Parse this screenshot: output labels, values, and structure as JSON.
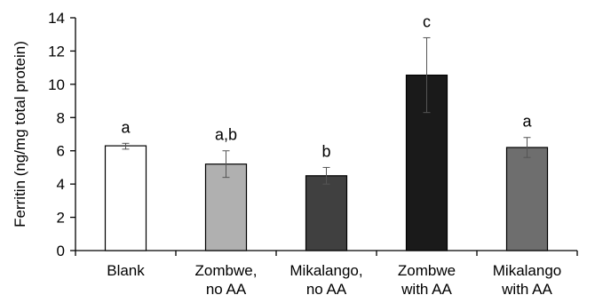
{
  "chart_data": {
    "type": "bar",
    "title": "",
    "xlabel": "",
    "ylabel": "Ferritin (ng/mg total protein)",
    "ylim": [
      0,
      14
    ],
    "yticks": [
      0,
      2,
      4,
      6,
      8,
      10,
      12,
      14
    ],
    "grid": false,
    "categories": [
      [
        "Blank"
      ],
      [
        "Zombwe,",
        "no AA"
      ],
      [
        "Mikalango,",
        "no AA"
      ],
      [
        "Zombwe",
        "with AA"
      ],
      [
        "Mikalango",
        "with AA"
      ]
    ],
    "values": [
      6.3,
      5.2,
      4.5,
      10.55,
      6.2
    ],
    "error_low": [
      6.1,
      4.4,
      4.0,
      8.3,
      5.6
    ],
    "error_high": [
      6.45,
      6.0,
      5.0,
      12.8,
      6.8
    ],
    "significance_labels": [
      "a",
      "a,b",
      "b",
      "c",
      "a"
    ],
    "bar_colors": [
      "#ffffff",
      "#b0b0b0",
      "#404040",
      "#1a1a1a",
      "#6e6e6e"
    ]
  }
}
